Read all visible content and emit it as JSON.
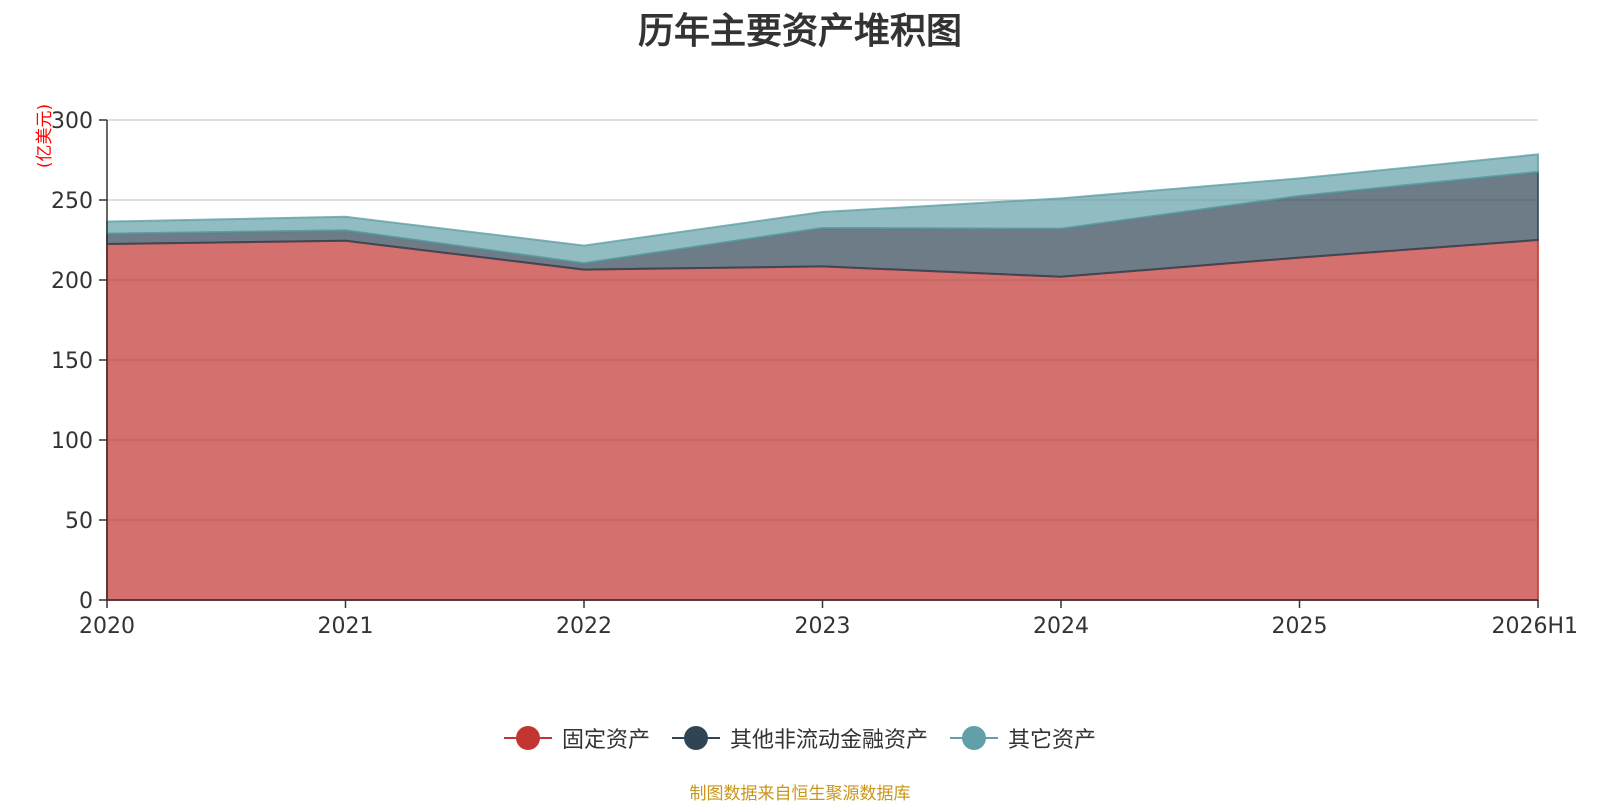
{
  "title": "历年主要资产堆积图",
  "footer": "制图数据来自恒生聚源数据库",
  "colors": {
    "fixed_assets": "#c23531",
    "other_noncurrent_financial": "#2f4554",
    "other_assets": "#61a0a8",
    "unit_label": "#ff0000",
    "footer": "#c9961a"
  },
  "chart_data": {
    "type": "area",
    "stacked": true,
    "title": "历年主要资产堆积图",
    "ylabel": "(亿美元)",
    "xlabel": "",
    "ylim": [
      0,
      300
    ],
    "yticks": [
      0,
      50,
      100,
      150,
      200,
      250,
      300
    ],
    "grid": true,
    "legend_position": "bottom",
    "categories": [
      "2020",
      "2021",
      "2022",
      "2023",
      "2024",
      "2025",
      "2026H1"
    ],
    "series": [
      {
        "name": "固定资产",
        "values": [
          222.5,
          224.5,
          206.5,
          208.5,
          202,
          214,
          225
        ]
      },
      {
        "name": "其他非流动金融资产",
        "values": [
          6.5,
          6.5,
          4,
          24,
          30,
          38.5,
          42.5
        ]
      },
      {
        "name": "其它资产",
        "values": [
          7.5,
          8.5,
          11,
          10,
          19,
          11,
          11
        ]
      }
    ]
  }
}
